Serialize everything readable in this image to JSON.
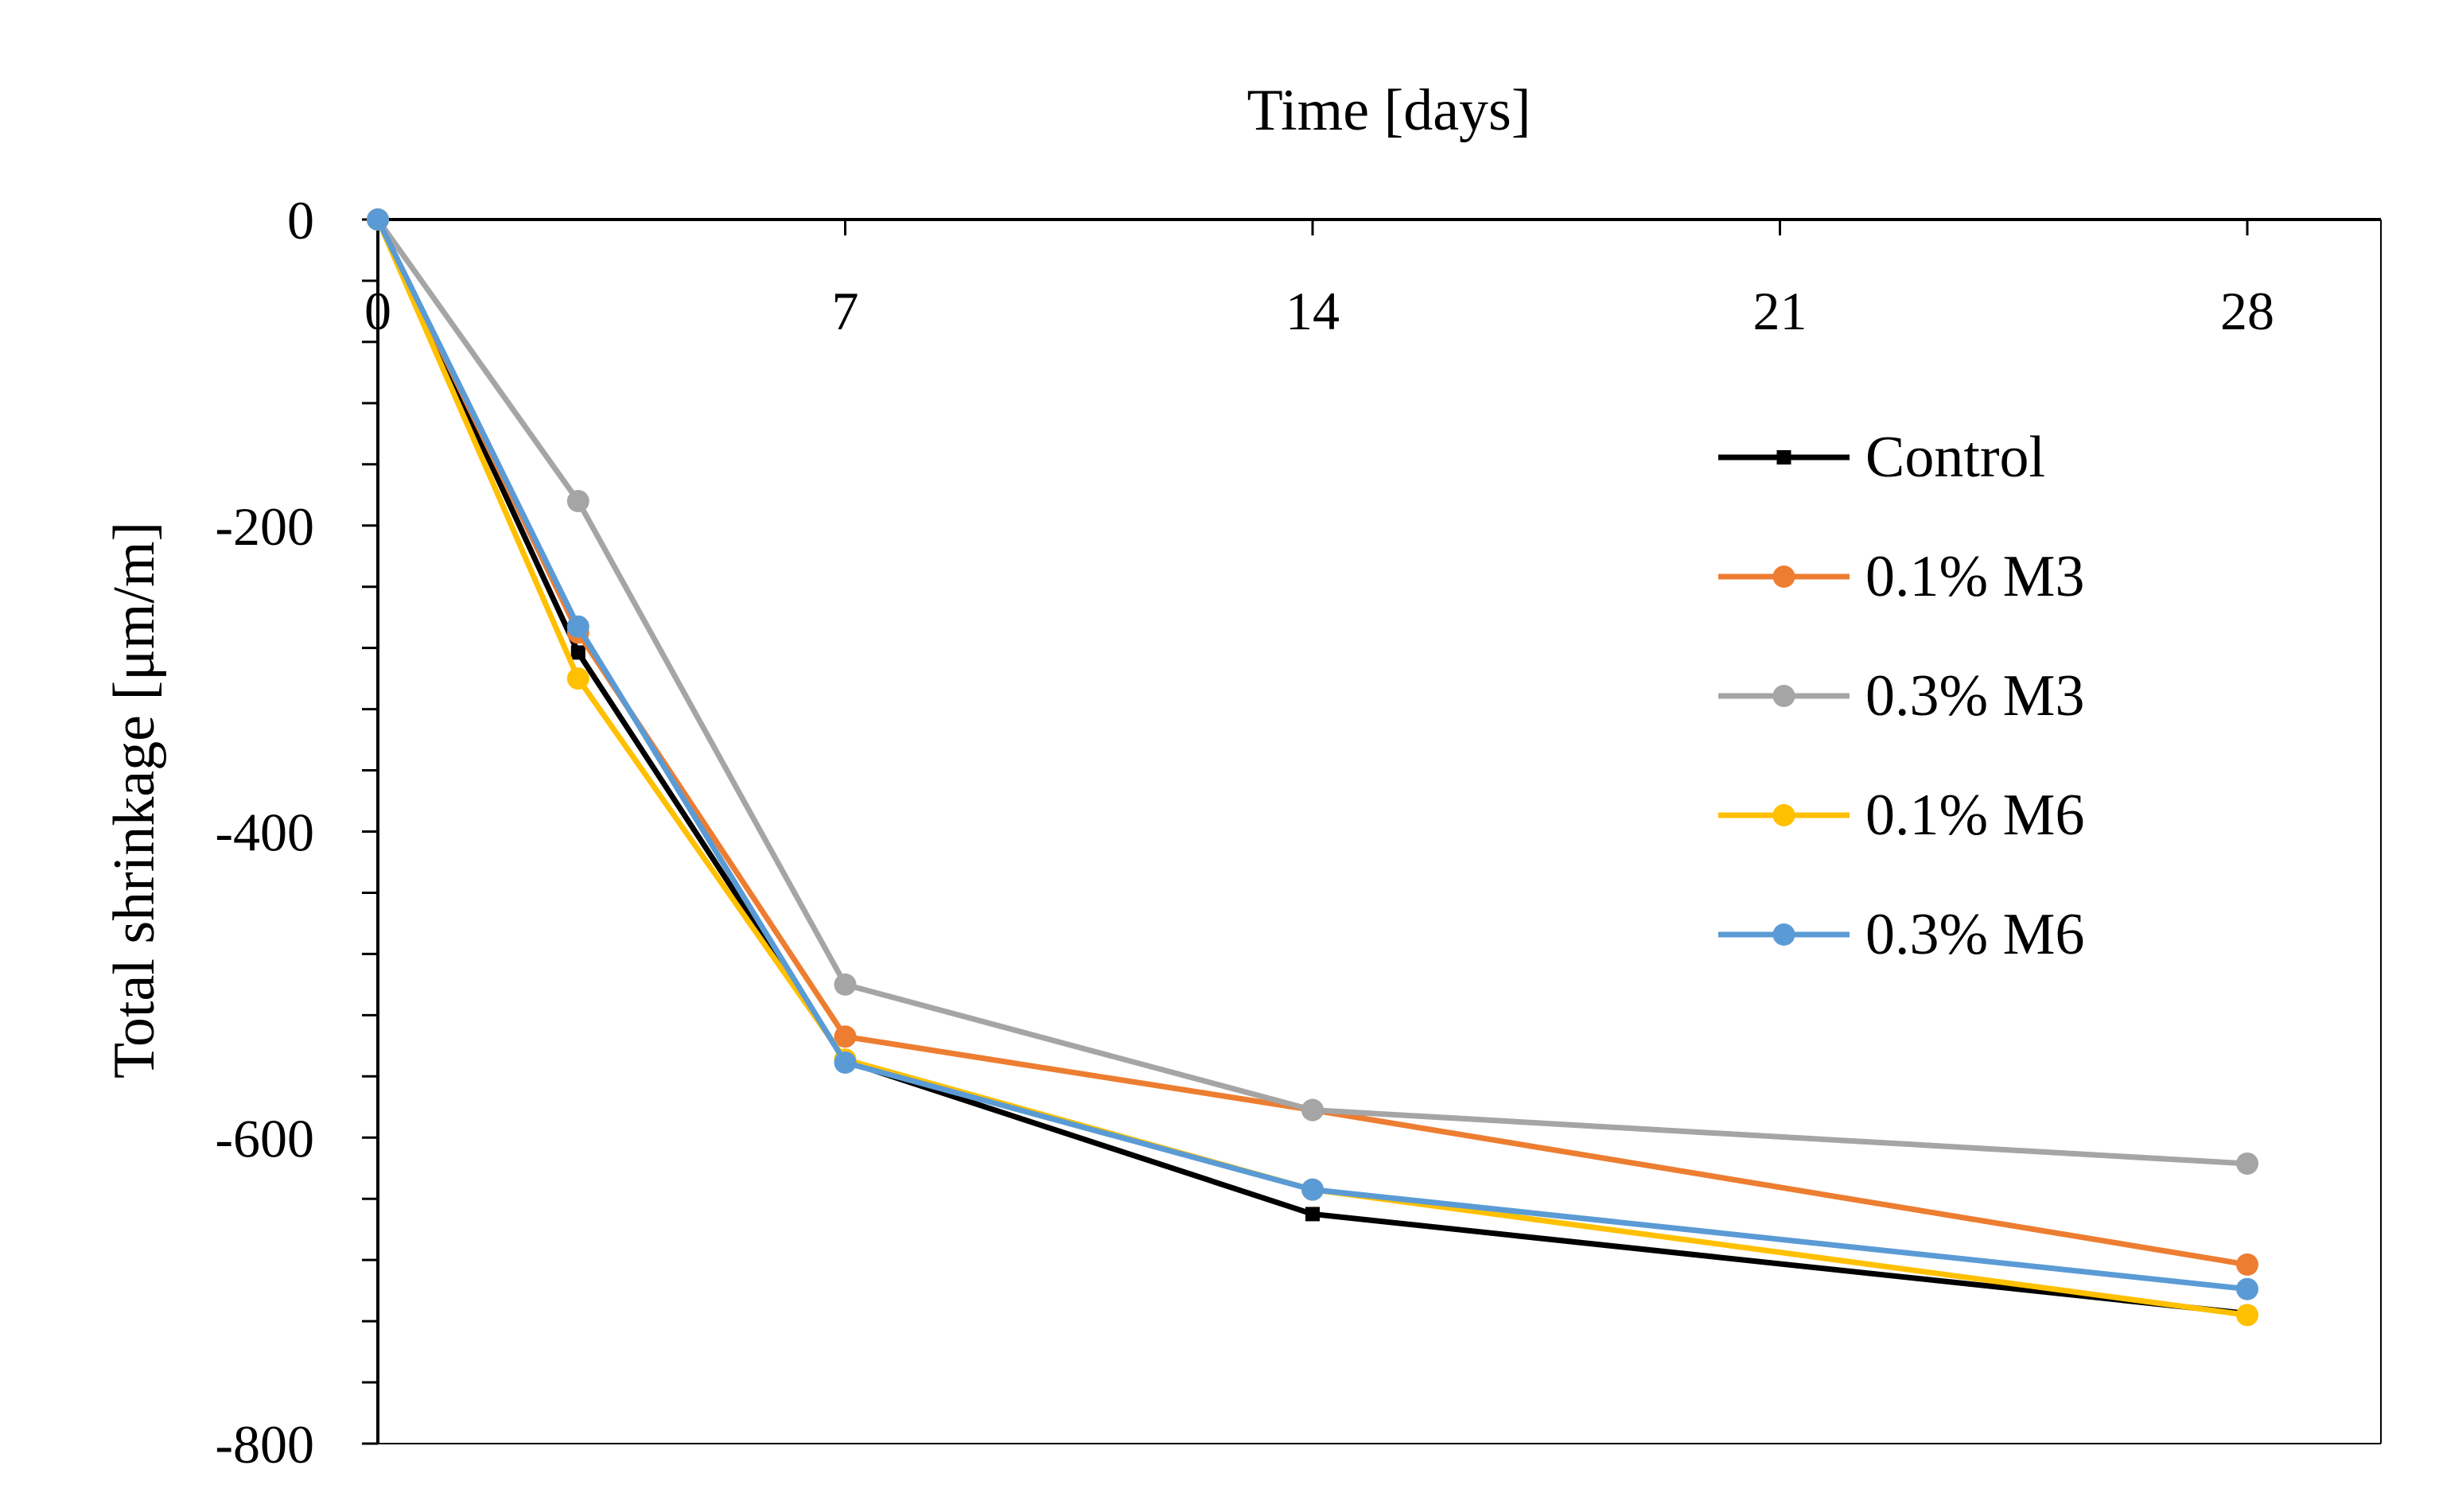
{
  "chart_data": {
    "type": "line",
    "title": "",
    "xlabel": "Time [days]",
    "ylabel": "Total shrinkage [μm/m]",
    "xlim": [
      0,
      30
    ],
    "ylim": [
      -800,
      0
    ],
    "xticks": [
      0,
      7,
      14,
      21,
      28
    ],
    "xtick_labels": [
      "0",
      "7",
      "14",
      "21",
      "28"
    ],
    "yticks": [
      0,
      -200,
      -400,
      -600,
      -800
    ],
    "ytick_labels": [
      "0",
      "-200",
      "-400",
      "-600",
      "-800"
    ],
    "y_minor_step": 40,
    "x_axis_position": "top",
    "grid": false,
    "legend_position": "right",
    "series": [
      {
        "name": "Control",
        "color": "#000000",
        "marker": "square",
        "x": [
          0,
          3,
          7,
          14,
          28
        ],
        "y": [
          0,
          -283,
          -550,
          -650,
          -715
        ]
      },
      {
        "name": "0.1% M3",
        "color": "#ED7D31",
        "marker": "circle",
        "x": [
          0,
          3,
          7,
          14,
          28
        ],
        "y": [
          0,
          -270,
          -534,
          -582,
          -683
        ]
      },
      {
        "name": "0.3% M3",
        "color": "#A5A5A5",
        "marker": "circle",
        "x": [
          0,
          3,
          7,
          14,
          28
        ],
        "y": [
          0,
          -184,
          -500,
          -582,
          -617
        ]
      },
      {
        "name": "0.1% M6",
        "color": "#FFC000",
        "marker": "circle",
        "x": [
          0,
          3,
          7,
          14,
          28
        ],
        "y": [
          0,
          -300,
          -549,
          -634,
          -716
        ]
      },
      {
        "name": "0.3% M6",
        "color": "#5B9BD5",
        "marker": "circle",
        "x": [
          0,
          3,
          7,
          14,
          28
        ],
        "y": [
          0,
          -266,
          -551,
          -634,
          -699
        ]
      }
    ]
  }
}
